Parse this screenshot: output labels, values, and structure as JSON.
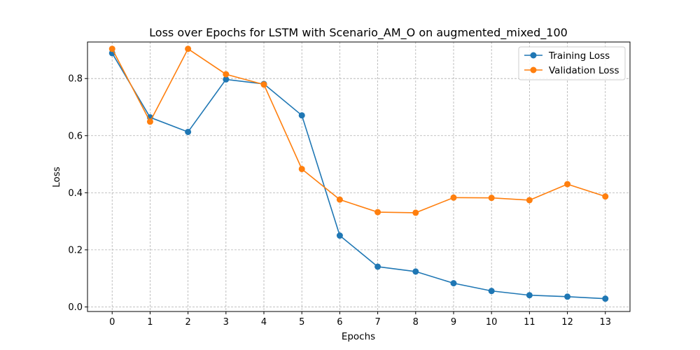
{
  "chart_data": {
    "type": "line",
    "title": "Loss over Epochs for LSTM with Scenario_AM_O on augmented_mixed_100",
    "xlabel": "Epochs",
    "ylabel": "Loss",
    "x": [
      0,
      1,
      2,
      3,
      4,
      5,
      6,
      7,
      8,
      9,
      10,
      11,
      12,
      13
    ],
    "x_ticks": [
      "0",
      "1",
      "2",
      "3",
      "4",
      "5",
      "6",
      "7",
      "8",
      "9",
      "10",
      "11",
      "12",
      "13"
    ],
    "y_ticks": [
      "0.0",
      "0.2",
      "0.4",
      "0.6",
      "0.8"
    ],
    "y_tick_values": [
      0.0,
      0.2,
      0.4,
      0.6,
      0.8
    ],
    "xlim": [
      -0.65,
      13.65
    ],
    "ylim": [
      -0.016,
      0.928
    ],
    "grid": true,
    "legend_position": "top-right",
    "series": [
      {
        "name": "Training Loss",
        "color": "#1f77b4",
        "values": [
          0.889,
          0.664,
          0.613,
          0.797,
          0.781,
          0.671,
          0.25,
          0.141,
          0.124,
          0.083,
          0.056,
          0.041,
          0.036,
          0.029
        ]
      },
      {
        "name": "Validation Loss",
        "color": "#ff7f0e",
        "values": [
          0.904,
          0.649,
          0.904,
          0.815,
          0.779,
          0.483,
          0.376,
          0.332,
          0.33,
          0.383,
          0.382,
          0.374,
          0.43,
          0.387
        ]
      }
    ]
  }
}
